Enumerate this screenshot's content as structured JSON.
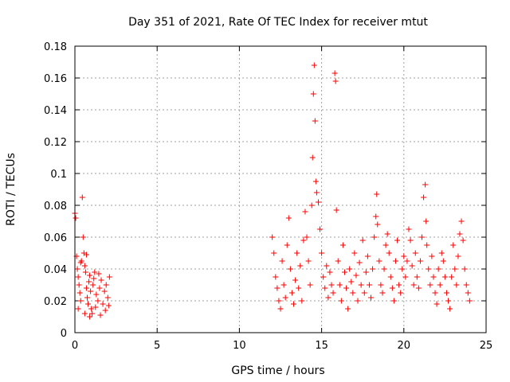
{
  "chart_data": {
    "type": "scatter",
    "title": "Day 351 of 2021, Rate Of TEC Index for receiver mtut",
    "xlabel": "GPS time / hours",
    "ylabel": "ROTI / TECUs",
    "xlim": [
      0,
      25
    ],
    "ylim": [
      0,
      0.18
    ],
    "x_ticks": [
      0,
      5,
      10,
      15,
      20,
      25
    ],
    "x_tick_labels": [
      "0",
      "5",
      "10",
      "15",
      "20",
      "25"
    ],
    "y_ticks": [
      0,
      0.02,
      0.04,
      0.06,
      0.08,
      0.1,
      0.12,
      0.14,
      0.16,
      0.18
    ],
    "y_tick_labels": [
      "0",
      "0.02",
      "0.04",
      "0.06",
      "0.08",
      "0.1",
      "0.12",
      "0.14",
      "0.16",
      "0.18"
    ],
    "grid": true,
    "marker": "+",
    "series_color": "#ff0000",
    "series": [
      {
        "name": "ROTI",
        "points": [
          [
            0.0,
            0.075
          ],
          [
            0.05,
            0.072
          ],
          [
            0.1,
            0.048
          ],
          [
            0.15,
            0.04
          ],
          [
            0.2,
            0.035
          ],
          [
            0.25,
            0.03
          ],
          [
            0.3,
            0.025
          ],
          [
            0.35,
            0.02
          ],
          [
            0.4,
            0.045
          ],
          [
            0.45,
            0.085
          ],
          [
            0.5,
            0.06
          ],
          [
            0.55,
            0.05
          ],
          [
            0.6,
            0.042
          ],
          [
            0.65,
            0.038
          ],
          [
            0.7,
            0.028
          ],
          [
            0.75,
            0.022
          ],
          [
            0.8,
            0.018
          ],
          [
            0.85,
            0.032
          ],
          [
            0.9,
            0.036
          ],
          [
            0.95,
            0.026
          ],
          [
            1.0,
            0.015
          ],
          [
            1.05,
            0.012
          ],
          [
            1.1,
            0.03
          ],
          [
            1.15,
            0.034
          ],
          [
            1.2,
            0.038
          ],
          [
            1.3,
            0.024
          ],
          [
            1.4,
            0.02
          ],
          [
            1.5,
            0.028
          ],
          [
            1.6,
            0.033
          ],
          [
            1.7,
            0.018
          ],
          [
            1.8,
            0.026
          ],
          [
            1.9,
            0.03
          ],
          [
            2.0,
            0.022
          ],
          [
            2.1,
            0.035
          ],
          [
            0.2,
            0.015
          ],
          [
            0.6,
            0.012
          ],
          [
            0.9,
            0.01
          ],
          [
            1.25,
            0.016
          ],
          [
            1.55,
            0.011
          ],
          [
            1.85,
            0.014
          ],
          [
            2.05,
            0.017
          ],
          [
            0.35,
            0.044
          ],
          [
            0.7,
            0.049
          ],
          [
            1.45,
            0.037
          ],
          [
            12.0,
            0.06
          ],
          [
            12.1,
            0.05
          ],
          [
            12.2,
            0.035
          ],
          [
            12.3,
            0.028
          ],
          [
            12.4,
            0.02
          ],
          [
            12.5,
            0.015
          ],
          [
            12.6,
            0.045
          ],
          [
            12.7,
            0.03
          ],
          [
            12.8,
            0.022
          ],
          [
            12.9,
            0.055
          ],
          [
            13.0,
            0.072
          ],
          [
            13.1,
            0.04
          ],
          [
            13.2,
            0.025
          ],
          [
            13.3,
            0.018
          ],
          [
            13.4,
            0.033
          ],
          [
            13.5,
            0.05
          ],
          [
            13.6,
            0.028
          ],
          [
            13.7,
            0.042
          ],
          [
            13.8,
            0.02
          ],
          [
            13.9,
            0.058
          ],
          [
            14.0,
            0.076
          ],
          [
            14.1,
            0.06
          ],
          [
            14.2,
            0.045
          ],
          [
            14.3,
            0.03
          ],
          [
            14.4,
            0.08
          ],
          [
            14.45,
            0.11
          ],
          [
            14.5,
            0.15
          ],
          [
            14.55,
            0.168
          ],
          [
            14.6,
            0.133
          ],
          [
            14.65,
            0.095
          ],
          [
            14.7,
            0.088
          ],
          [
            14.8,
            0.082
          ],
          [
            14.9,
            0.065
          ],
          [
            15.0,
            0.05
          ],
          [
            15.1,
            0.035
          ],
          [
            15.2,
            0.028
          ],
          [
            15.3,
            0.042
          ],
          [
            15.4,
            0.022
          ],
          [
            15.5,
            0.038
          ],
          [
            15.6,
            0.03
          ],
          [
            15.7,
            0.025
          ],
          [
            15.8,
            0.163
          ],
          [
            15.85,
            0.158
          ],
          [
            15.9,
            0.077
          ],
          [
            16.0,
            0.045
          ],
          [
            16.1,
            0.03
          ],
          [
            16.2,
            0.02
          ],
          [
            16.3,
            0.055
          ],
          [
            16.4,
            0.038
          ],
          [
            16.5,
            0.028
          ],
          [
            16.6,
            0.015
          ],
          [
            16.7,
            0.04
          ],
          [
            16.8,
            0.032
          ],
          [
            16.9,
            0.025
          ],
          [
            17.0,
            0.05
          ],
          [
            17.1,
            0.036
          ],
          [
            17.2,
            0.02
          ],
          [
            17.3,
            0.044
          ],
          [
            17.4,
            0.03
          ],
          [
            17.5,
            0.058
          ],
          [
            17.6,
            0.025
          ],
          [
            17.7,
            0.038
          ],
          [
            17.8,
            0.048
          ],
          [
            17.9,
            0.03
          ],
          [
            18.0,
            0.022
          ],
          [
            18.1,
            0.04
          ],
          [
            18.2,
            0.06
          ],
          [
            18.3,
            0.073
          ],
          [
            18.35,
            0.087
          ],
          [
            18.4,
            0.068
          ],
          [
            18.5,
            0.045
          ],
          [
            18.6,
            0.03
          ],
          [
            18.7,
            0.025
          ],
          [
            18.8,
            0.04
          ],
          [
            18.9,
            0.055
          ],
          [
            19.0,
            0.062
          ],
          [
            19.1,
            0.05
          ],
          [
            19.2,
            0.035
          ],
          [
            19.3,
            0.028
          ],
          [
            19.4,
            0.02
          ],
          [
            19.5,
            0.045
          ],
          [
            19.6,
            0.058
          ],
          [
            19.7,
            0.03
          ],
          [
            19.8,
            0.025
          ],
          [
            19.9,
            0.04
          ],
          [
            20.0,
            0.048
          ],
          [
            20.1,
            0.035
          ],
          [
            20.2,
            0.045
          ],
          [
            20.3,
            0.065
          ],
          [
            20.4,
            0.058
          ],
          [
            20.5,
            0.042
          ],
          [
            20.6,
            0.03
          ],
          [
            20.7,
            0.05
          ],
          [
            20.8,
            0.035
          ],
          [
            20.9,
            0.028
          ],
          [
            21.0,
            0.045
          ],
          [
            21.1,
            0.06
          ],
          [
            21.2,
            0.085
          ],
          [
            21.3,
            0.093
          ],
          [
            21.35,
            0.07
          ],
          [
            21.4,
            0.055
          ],
          [
            21.5,
            0.04
          ],
          [
            21.6,
            0.03
          ],
          [
            21.7,
            0.048
          ],
          [
            21.8,
            0.035
          ],
          [
            21.9,
            0.025
          ],
          [
            22.0,
            0.018
          ],
          [
            22.1,
            0.04
          ],
          [
            22.2,
            0.03
          ],
          [
            22.3,
            0.05
          ],
          [
            22.4,
            0.045
          ],
          [
            22.5,
            0.035
          ],
          [
            22.6,
            0.025
          ],
          [
            22.7,
            0.02
          ],
          [
            22.8,
            0.015
          ],
          [
            22.9,
            0.035
          ],
          [
            23.0,
            0.055
          ],
          [
            23.1,
            0.04
          ],
          [
            23.2,
            0.03
          ],
          [
            23.3,
            0.048
          ],
          [
            23.4,
            0.062
          ],
          [
            23.5,
            0.07
          ],
          [
            23.6,
            0.058
          ],
          [
            23.7,
            0.04
          ],
          [
            23.8,
            0.03
          ],
          [
            23.9,
            0.025
          ],
          [
            24.0,
            0.02
          ]
        ]
      }
    ]
  }
}
